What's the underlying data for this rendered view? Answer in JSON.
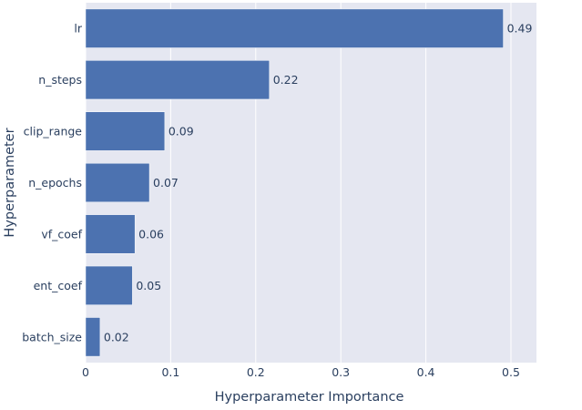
{
  "chart_data": {
    "type": "bar",
    "orientation": "horizontal",
    "title": "",
    "xlabel": "Hyperparameter Importance",
    "ylabel": "Hyperparameter",
    "categories": [
      "lr",
      "n_steps",
      "clip_range",
      "n_epochs",
      "vf_coef",
      "ent_coef",
      "batch_size"
    ],
    "values": [
      0.491,
      0.216,
      0.093,
      0.075,
      0.058,
      0.055,
      0.017
    ],
    "value_labels": [
      "0.49",
      "0.22",
      "0.09",
      "0.07",
      "0.06",
      "0.05",
      "0.02"
    ],
    "xlim": [
      0,
      0.53
    ],
    "xticks": [
      0,
      0.1,
      0.2,
      0.3,
      0.4,
      0.5
    ],
    "xtick_labels": [
      "0",
      "0.1",
      "0.2",
      "0.3",
      "0.4",
      "0.5"
    ],
    "grid": true,
    "colors": {
      "bar": "#4c72b0",
      "bar_outline": "#ffffff",
      "plot_background": "#e5e7f1",
      "grid": "#ffffff",
      "text": "#2a3f5f"
    }
  }
}
